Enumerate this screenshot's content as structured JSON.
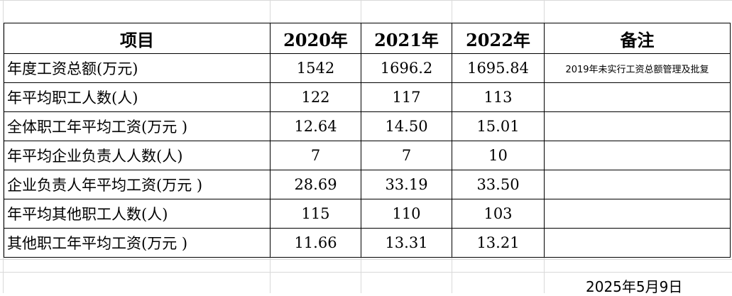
{
  "table": {
    "headers": [
      "项目",
      "2020年",
      "2021年",
      "2022年",
      "备注"
    ],
    "rows": [
      {
        "item": "年度工资总额(万元)",
        "v2020": "1542",
        "v2021": "1696.2",
        "v2022": "1695.84",
        "note": "2019年未实行工资总额管理及批复"
      },
      {
        "item": "年平均职工人数(人)",
        "v2020": "122",
        "v2021": "117",
        "v2022": "113",
        "note": ""
      },
      {
        "item": "全体职工年平均工资(万元 )",
        "v2020": "12.64",
        "v2021": "14.50",
        "v2022": "15.01",
        "note": ""
      },
      {
        "item": "年平均企业负责人人数(人)",
        "v2020": "7",
        "v2021": "7",
        "v2022": "10",
        "note": ""
      },
      {
        "item": "企业负责人年平均工资(万元 )",
        "v2020": "28.69",
        "v2021": "33.19",
        "v2022": "33.50",
        "note": ""
      },
      {
        "item": "年平均其他职工人数(人)",
        "v2020": "115",
        "v2021": "110",
        "v2022": "103",
        "note": ""
      },
      {
        "item": "其他职工年平均工资(万元 )",
        "v2020": "11.66",
        "v2021": "13.31",
        "v2022": "13.21",
        "note": ""
      }
    ]
  },
  "footer": {
    "date": "2025年5月9日"
  }
}
